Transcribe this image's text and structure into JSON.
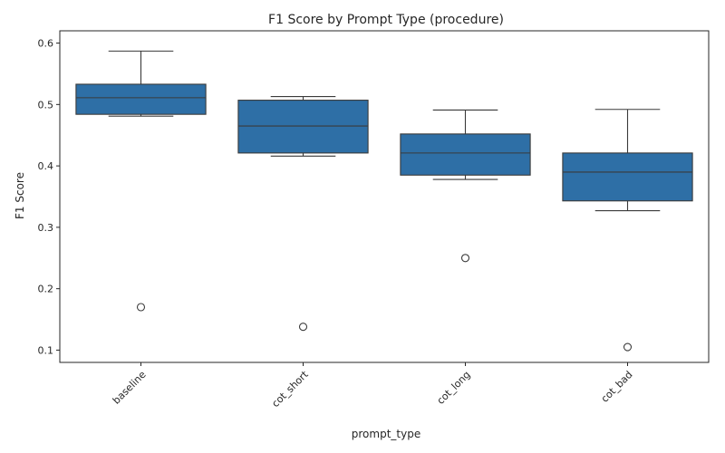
{
  "chart_data": {
    "type": "box",
    "title": "F1 Score by Prompt Type (procedure)",
    "xlabel": "prompt_type",
    "ylabel": "F1 Score",
    "ylim": [
      0.08,
      0.62
    ],
    "yticks": [
      0.1,
      0.2,
      0.3,
      0.4,
      0.5,
      0.6
    ],
    "ytick_labels": [
      "0.1",
      "0.2",
      "0.3",
      "0.4",
      "0.5",
      "0.6"
    ],
    "categories": [
      "baseline",
      "cot_short",
      "cot_long",
      "cot_bad"
    ],
    "box_color": "#2e6fa6",
    "boxes": [
      {
        "category": "baseline",
        "whisker_low": 0.481,
        "q1": 0.484,
        "median": 0.511,
        "q3": 0.533,
        "whisker_high": 0.587,
        "outliers": [
          0.17
        ]
      },
      {
        "category": "cot_short",
        "whisker_low": 0.416,
        "q1": 0.421,
        "median": 0.465,
        "q3": 0.507,
        "whisker_high": 0.513,
        "outliers": [
          0.138
        ]
      },
      {
        "category": "cot_long",
        "whisker_low": 0.378,
        "q1": 0.385,
        "median": 0.421,
        "q3": 0.452,
        "whisker_high": 0.491,
        "outliers": [
          0.25
        ]
      },
      {
        "category": "cot_bad",
        "whisker_low": 0.327,
        "q1": 0.343,
        "median": 0.39,
        "q3": 0.421,
        "whisker_high": 0.492,
        "outliers": [
          0.105
        ]
      }
    ],
    "grid": false,
    "legend": "none"
  }
}
